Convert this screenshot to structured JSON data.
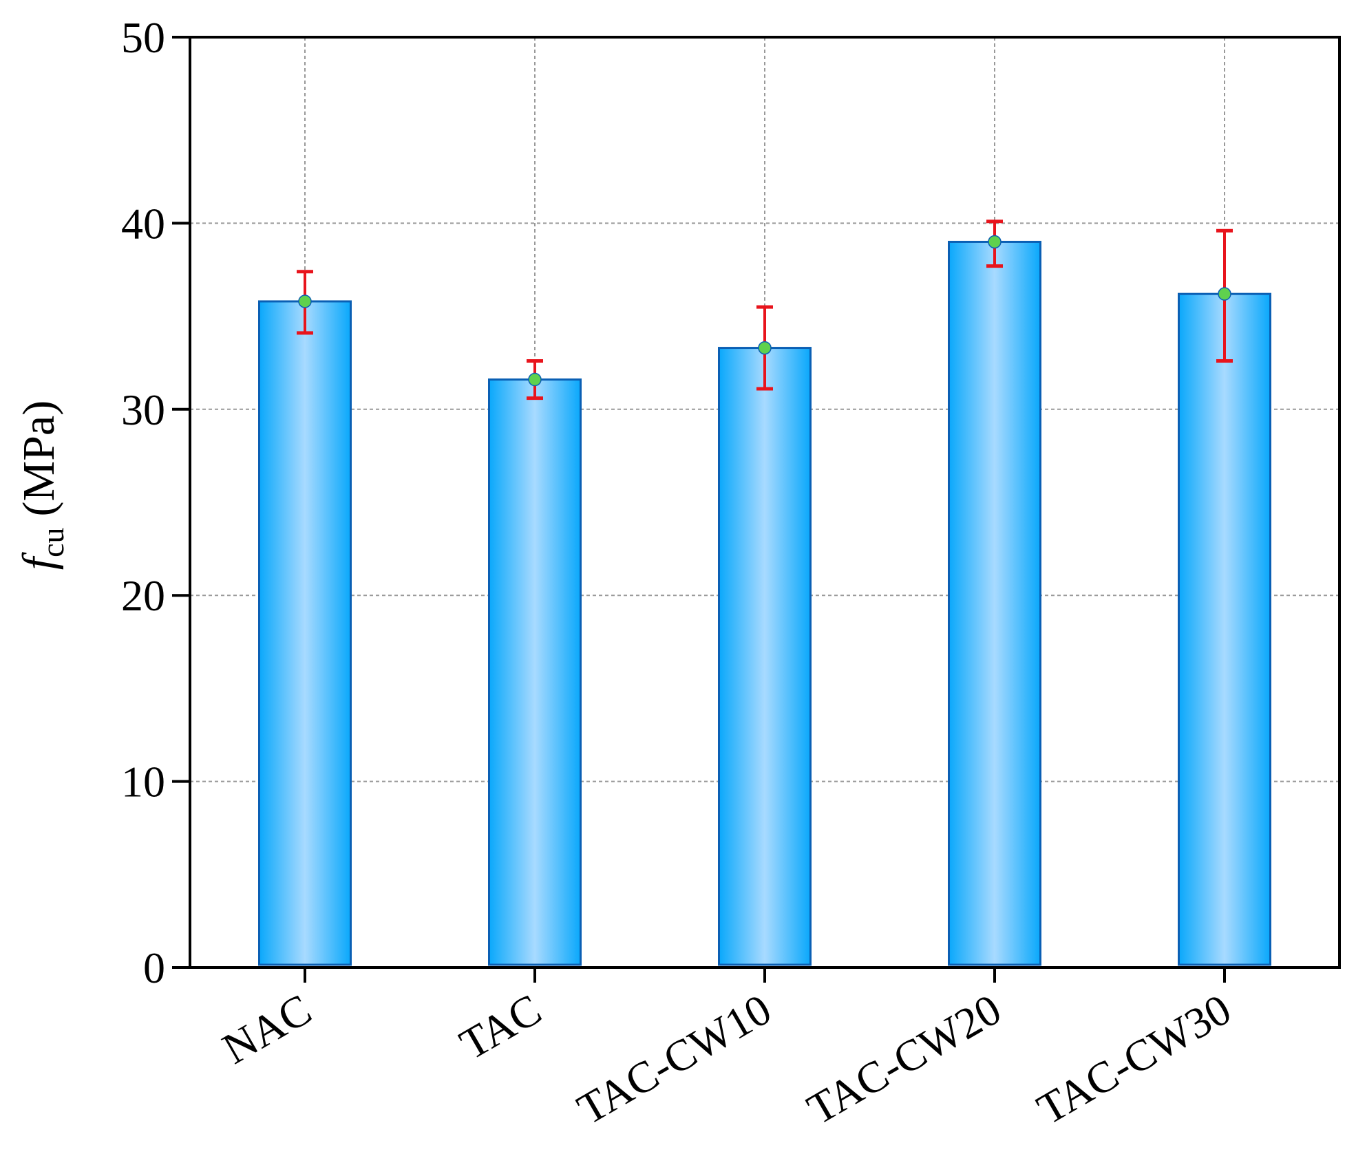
{
  "chart_data": {
    "type": "bar",
    "categories": [
      "NAC",
      "TAC",
      "TAC-CW10",
      "TAC-CW20",
      "TAC-CW30"
    ],
    "values": [
      35.8,
      31.6,
      33.3,
      39.0,
      36.2
    ],
    "error_low": [
      34.1,
      30.6,
      31.1,
      37.7,
      32.6
    ],
    "error_high": [
      37.4,
      32.6,
      35.5,
      40.1,
      39.6
    ],
    "ylabel": {
      "symbol": "f",
      "subscript": "cu",
      "unit": "(MPa)"
    },
    "ylim": [
      0,
      50
    ],
    "yticks": [
      "0",
      "10",
      "20",
      "30",
      "40",
      "50"
    ],
    "grid": true,
    "colors": {
      "bar_edge": "#0a5fb4",
      "bar_light": "#a8daff",
      "bar_dark": "#0aa8fb",
      "error_bar": "#e8141c",
      "marker": "#5fd14d",
      "grid": "#999999"
    }
  }
}
